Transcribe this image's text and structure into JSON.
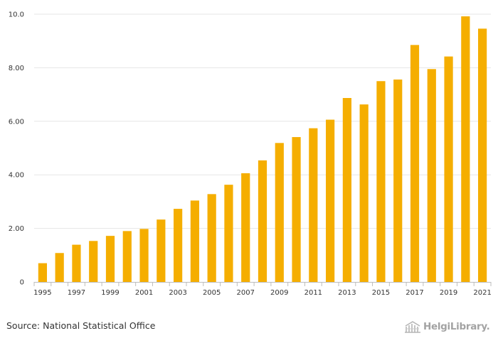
{
  "chart_data": {
    "type": "bar",
    "title": "",
    "xlabel": "",
    "ylabel": "",
    "ylim": [
      0,
      10
    ],
    "y_ticks": [
      0,
      2,
      4,
      6,
      8,
      10
    ],
    "y_tick_labels": [
      "0",
      "2.00",
      "4.00",
      "6.00",
      "8.00",
      "10.0"
    ],
    "grid": true,
    "bar_color": "#f5ae00",
    "categories": [
      "1995",
      "1996",
      "1997",
      "1998",
      "1999",
      "2000",
      "2001",
      "2002",
      "2003",
      "2004",
      "2005",
      "2006",
      "2007",
      "2008",
      "2009",
      "2010",
      "2011",
      "2012",
      "2013",
      "2014",
      "2015",
      "2016",
      "2017",
      "2018",
      "2019",
      "2020",
      "2021"
    ],
    "x_tick_labels": [
      "1995",
      "1997",
      "1999",
      "2001",
      "2003",
      "2005",
      "2007",
      "2009",
      "2011",
      "2013",
      "2015",
      "2017",
      "2019",
      "2021"
    ],
    "values": [
      0.7,
      1.08,
      1.39,
      1.53,
      1.72,
      1.9,
      1.98,
      2.33,
      2.73,
      3.04,
      3.28,
      3.63,
      4.06,
      4.54,
      5.19,
      5.41,
      5.74,
      6.06,
      6.87,
      6.63,
      7.5,
      7.56,
      8.85,
      7.95,
      8.42,
      9.92,
      9.46
    ]
  },
  "footer": {
    "source": "Source: National Statistical Office",
    "logo_text": "HelgiLibrary."
  }
}
